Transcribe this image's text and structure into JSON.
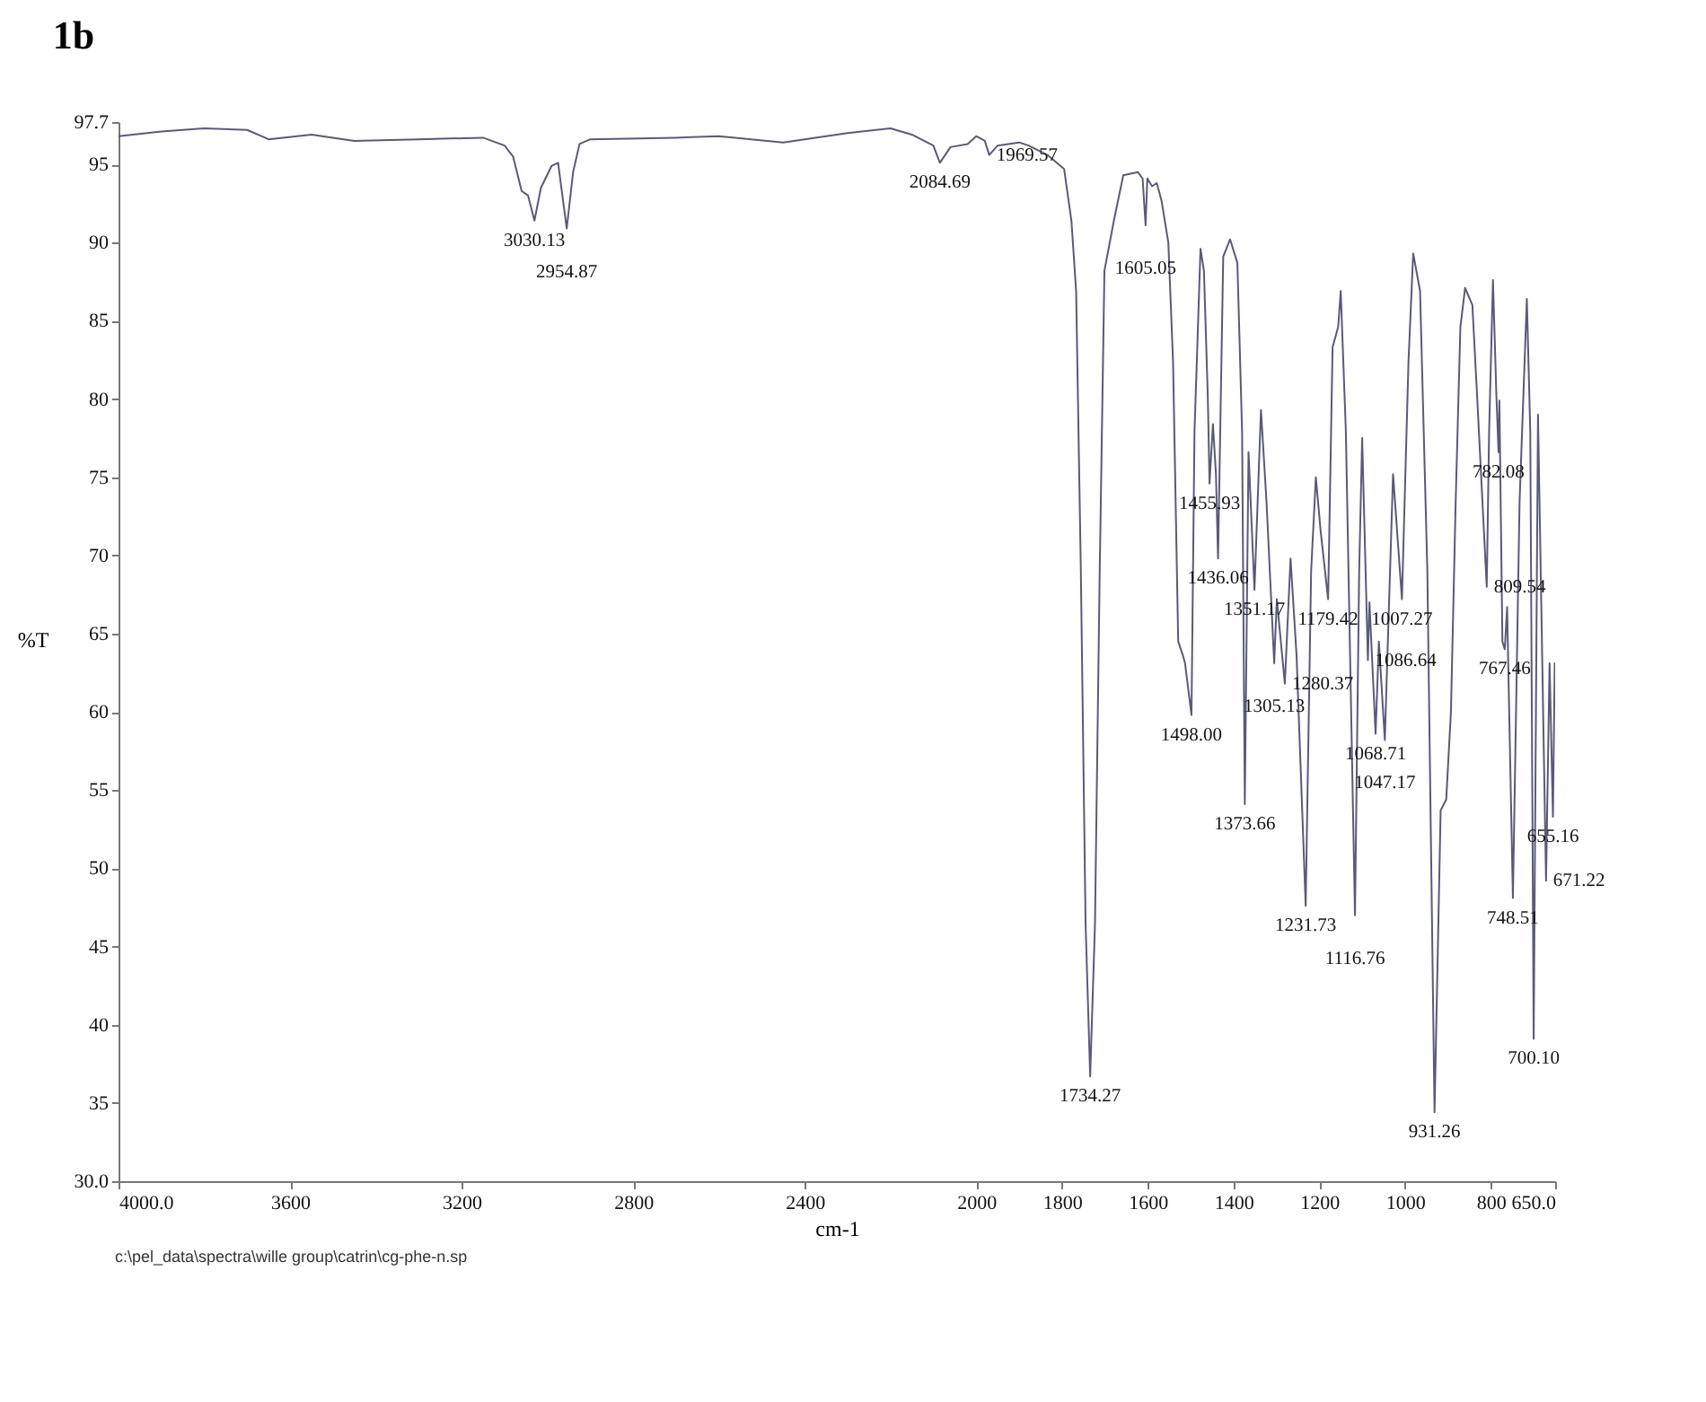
{
  "chart_data": {
    "type": "line",
    "title": "1b",
    "xlabel": "cm-1",
    "ylabel": "%T",
    "xlim": [
      4000,
      650
    ],
    "xticks": [
      {
        "value": 4000,
        "label": "4000.0"
      },
      3600,
      3200,
      2800,
      2400,
      2000,
      1800,
      1600,
      1400,
      1200,
      1000,
      800,
      {
        "value": 650,
        "label": "650.0"
      }
    ],
    "ylim": [
      30,
      97.7
    ],
    "yticks": [
      {
        "value": 30,
        "label": "30.0"
      },
      35,
      40,
      45,
      50,
      55,
      60,
      65,
      70,
      75,
      80,
      85,
      90,
      95,
      {
        "value": 97.7,
        "label": "97.7"
      }
    ],
    "grid": false,
    "marker": "none",
    "line_style": "solid",
    "series": [
      {
        "color": "#5a5a78",
        "x": [
          4000,
          3900,
          3800,
          3700,
          3650,
          3550,
          3450,
          3300,
          3150,
          3100,
          3080,
          3060,
          3045,
          3030.13,
          3015,
          2990,
          2975,
          2954.87,
          2940,
          2925,
          2900,
          2700,
          2600,
          2450,
          2300,
          2200,
          2150,
          2100,
          2084.69,
          2060,
          2020,
          2000,
          1980,
          1969.57,
          1950,
          1900,
          1878,
          1834,
          1795,
          1778,
          1767,
          1756,
          1745,
          1734.27,
          1723,
          1712,
          1701,
          1679,
          1657,
          1623,
          1612,
          1605.05,
          1601,
          1590,
          1579,
          1568,
          1552,
          1541,
          1529,
          1518,
          1513,
          1498,
          1491,
          1477,
          1469,
          1460,
          1455.93,
          1448,
          1441,
          1436.06,
          1424,
          1408,
          1391,
          1380,
          1373.66,
          1365,
          1351.17,
          1336,
          1323,
          1305.13,
          1299,
          1280.37,
          1267,
          1253,
          1231.73,
          1219,
          1208,
          1197,
          1179.42,
          1169,
          1156,
          1150,
          1138,
          1116.76,
          1107,
          1100,
          1086.64,
          1083,
          1068.71,
          1061,
          1047.17,
          1028,
          1007.27,
          992,
          981,
          965,
          948,
          931.26,
          917,
          904,
          893,
          882,
          871,
          860,
          843,
          832,
          809.54,
          804,
          795,
          787,
          782.08,
          780,
          773,
          767.46,
          762,
          748.51,
          733,
          716,
          708,
          700.1,
          690,
          671.22,
          663,
          655.16,
          651
        ],
        "values": [
          96.8,
          97.1,
          97.3,
          97.2,
          96.6,
          96.9,
          96.5,
          96.6,
          96.7,
          96.2,
          95.5,
          93.3,
          93.0,
          91.4,
          93.5,
          94.9,
          95.1,
          90.9,
          94.5,
          96.3,
          96.6,
          96.7,
          96.8,
          96.4,
          97.0,
          97.3,
          96.9,
          96.2,
          95.1,
          96.1,
          96.3,
          96.8,
          96.5,
          95.6,
          96.2,
          96.4,
          96.2,
          95.6,
          94.7,
          91.4,
          86.9,
          69.0,
          46.5,
          36.7,
          46.5,
          69.0,
          88.2,
          91.4,
          94.3,
          94.5,
          94.1,
          91.1,
          94.1,
          93.6,
          93.8,
          92.7,
          90.0,
          82.4,
          64.5,
          63.6,
          63.1,
          59.8,
          77.9,
          89.6,
          88.2,
          80.2,
          74.6,
          78.4,
          75.2,
          69.8,
          89.1,
          90.2,
          88.7,
          77.9,
          54.1,
          76.6,
          67.8,
          79.3,
          73.4,
          63.1,
          67.2,
          61.8,
          69.8,
          63.6,
          47.6,
          69.0,
          75.0,
          71.6,
          67.2,
          83.3,
          84.6,
          86.9,
          77.9,
          47.0,
          69.0,
          77.5,
          63.3,
          67.0,
          58.6,
          64.5,
          58.2,
          75.2,
          67.2,
          82.4,
          89.3,
          86.9,
          69.0,
          34.4,
          53.7,
          54.4,
          60.0,
          73.4,
          84.6,
          87.1,
          86.0,
          80.2,
          68.0,
          77.9,
          87.6,
          80.2,
          76.6,
          79.9,
          64.5,
          64.0,
          66.7,
          48.1,
          73.4,
          86.4,
          77.9,
          39.1,
          79.0,
          49.2,
          63.1,
          53.3,
          63.1
        ]
      }
    ],
    "annotations": [
      {
        "text": "3030.13",
        "x": 3030.13,
        "y": 91.4
      },
      {
        "text": "2954.87",
        "x": 2954.87,
        "y": 90.9
      },
      {
        "text": "2084.69",
        "x": 2084.69,
        "y": 95.1
      },
      {
        "text": "1969.57",
        "x": 1969.57,
        "y": 95.6
      },
      {
        "text": "1734.27",
        "x": 1734.27,
        "y": 36.7
      },
      {
        "text": "1605.05",
        "x": 1605.05,
        "y": 91.1
      },
      {
        "text": "1498.00",
        "x": 1498.0,
        "y": 59.8
      },
      {
        "text": "1455.93",
        "x": 1455.93,
        "y": 74.6
      },
      {
        "text": "1436.06",
        "x": 1436.06,
        "y": 69.8
      },
      {
        "text": "1373.66",
        "x": 1373.66,
        "y": 54.1
      },
      {
        "text": "1351.17",
        "x": 1351.17,
        "y": 67.8
      },
      {
        "text": "1305.13",
        "x": 1305.13,
        "y": 63.1
      },
      {
        "text": "1280.37",
        "x": 1280.37,
        "y": 61.8
      },
      {
        "text": "1231.73",
        "x": 1231.73,
        "y": 47.6
      },
      {
        "text": "1179.42",
        "x": 1179.42,
        "y": 67.2
      },
      {
        "text": "1116.76",
        "x": 1116.76,
        "y": 47.0
      },
      {
        "text": "1086.64",
        "x": 1086.64,
        "y": 63.3
      },
      {
        "text": "1068.71",
        "x": 1068.71,
        "y": 58.6
      },
      {
        "text": "1047.17",
        "x": 1047.17,
        "y": 58.2
      },
      {
        "text": "1007.27",
        "x": 1007.27,
        "y": 67.2
      },
      {
        "text": "931.26",
        "x": 931.26,
        "y": 34.4
      },
      {
        "text": "809.54",
        "x": 809.54,
        "y": 68.0
      },
      {
        "text": "782.08",
        "x": 782.08,
        "y": 76.6
      },
      {
        "text": "767.46",
        "x": 767.46,
        "y": 64.0
      },
      {
        "text": "748.51",
        "x": 748.51,
        "y": 48.1
      },
      {
        "text": "700.10",
        "x": 700.1,
        "y": 39.1
      },
      {
        "text": "671.22",
        "x": 671.22,
        "y": 49.2
      },
      {
        "text": "655.16",
        "x": 655.16,
        "y": 53.3
      },
      "c:\\pel_data\\spectra\\wille group\\catrin\\cg-phe-n.sp"
    ]
  }
}
